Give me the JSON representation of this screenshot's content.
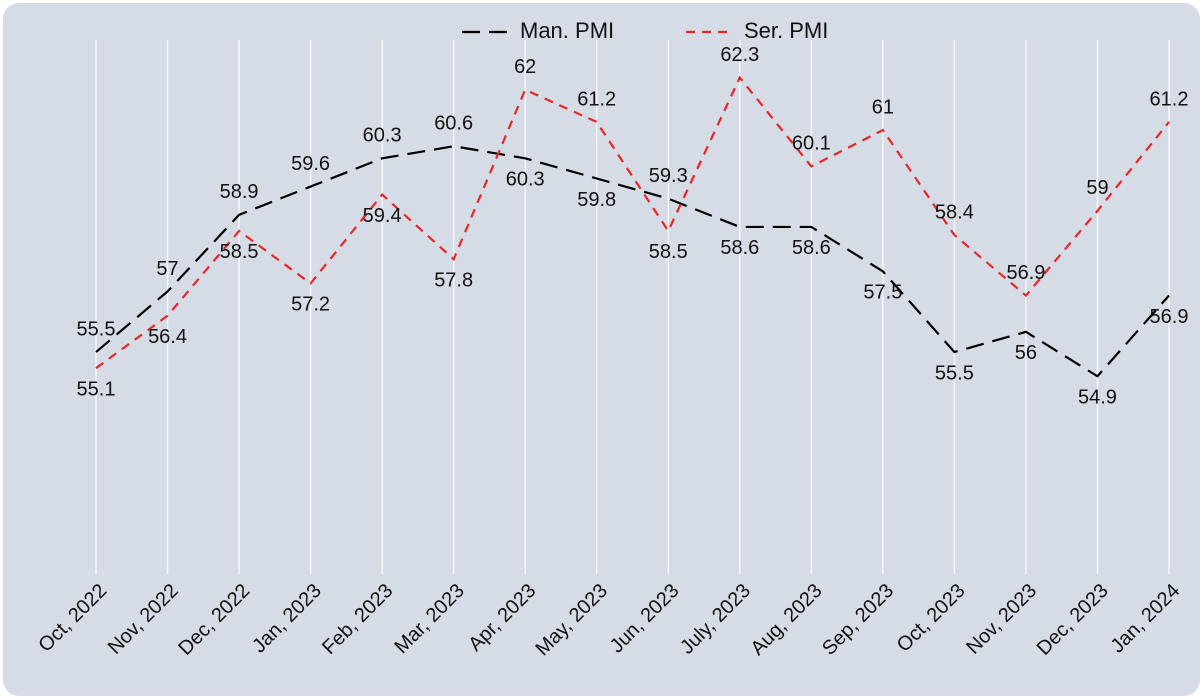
{
  "chart_data": {
    "type": "line",
    "categories": [
      "Oct, 2022",
      "Nov, 2022",
      "Dec, 2022",
      "Jan, 2023",
      "Feb, 2023",
      "Mar, 2023",
      "Apr, 2023",
      "May, 2023",
      "Jun, 2023",
      "July, 2023",
      "Aug, 2023",
      "Sep, 2023",
      "Oct, 2023",
      "Nov, 2023",
      "Dec, 2023",
      "Jan, 2024"
    ],
    "series": [
      {
        "name": "Man. PMI",
        "color": "#000000",
        "values": [
          55.5,
          57,
          58.9,
          59.6,
          60.3,
          60.6,
          60.3,
          59.8,
          59.3,
          58.6,
          58.6,
          57.5,
          55.5,
          56,
          54.9,
          56.9
        ]
      },
      {
        "name": "Ser. PMI",
        "color": "#e8262a",
        "values": [
          55.1,
          56.4,
          58.5,
          57.2,
          59.4,
          57.8,
          62,
          61.2,
          58.5,
          62.3,
          60.1,
          61,
          58.4,
          56.9,
          59,
          61.2
        ]
      }
    ],
    "ylim": [
      50,
      64
    ],
    "xgrid": true,
    "legend": "top"
  }
}
